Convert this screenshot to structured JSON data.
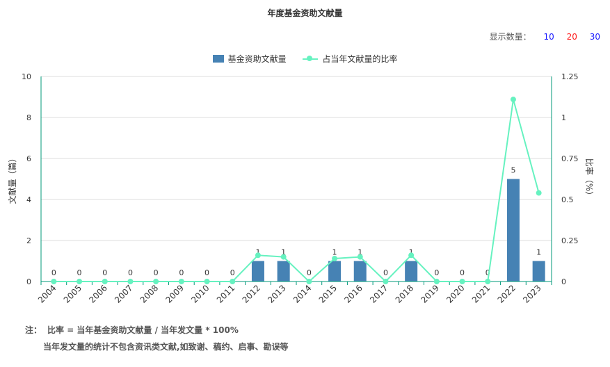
{
  "title": "年度基金资助文献量",
  "count_selector": {
    "label": "显示数量：",
    "options": [
      "10",
      "20",
      "30"
    ]
  },
  "legend": {
    "bar_label": "基金资助文献量",
    "line_label": "占当年文献量的比率"
  },
  "colors": {
    "bar": "#4682b4",
    "line": "#66f2c0",
    "axis": "#00997a",
    "grid": "#dcdcdc",
    "opt_blue": "#1a1aff",
    "opt_red": "#ff1a1a"
  },
  "chart_data": {
    "type": "bar",
    "categories": [
      "2004",
      "2005",
      "2006",
      "2007",
      "2008",
      "2009",
      "2010",
      "2011",
      "2012",
      "2013",
      "2014",
      "2015",
      "2016",
      "2017",
      "2018",
      "2019",
      "2020",
      "2021",
      "2022",
      "2023"
    ],
    "series": [
      {
        "name": "基金资助文献量",
        "type": "bar",
        "axis": "left",
        "values": [
          0,
          0,
          0,
          0,
          0,
          0,
          0,
          0,
          1,
          1,
          0,
          1,
          1,
          0,
          1,
          0,
          0,
          0,
          5,
          1
        ],
        "data_labels": [
          "0",
          "0",
          "0",
          "0",
          "0",
          "0",
          "0",
          "0",
          "1",
          "1",
          "0",
          "1",
          "1",
          "0",
          "1",
          "0",
          "0",
          "0",
          "5",
          "1"
        ]
      },
      {
        "name": "占当年文献量的比率",
        "type": "line",
        "axis": "right",
        "values": [
          0,
          0,
          0,
          0,
          0,
          0,
          0,
          0,
          0.16,
          0.15,
          0,
          0.14,
          0.15,
          0,
          0.16,
          0,
          0,
          0,
          1.11,
          0.54
        ]
      }
    ],
    "left_axis": {
      "label": "文献量（篇）",
      "ylim": [
        0,
        10
      ],
      "ticks": [
        "0",
        "2",
        "4",
        "6",
        "8",
        "10"
      ]
    },
    "right_axis": {
      "label": "比率（%）",
      "ylim": [
        0,
        1.25
      ],
      "ticks": [
        "0",
        "0.25",
        "0.5",
        "0.75",
        "1",
        "1.25"
      ]
    },
    "grid": true,
    "legend_position": "top-center"
  },
  "notes": {
    "prefix": "注：",
    "line1": "比率 = 当年基金资助文献量 / 当年发文量 * 100%",
    "line2": "当年发文量的统计不包含资讯类文献,如致谢、稿约、启事、勘误等"
  }
}
